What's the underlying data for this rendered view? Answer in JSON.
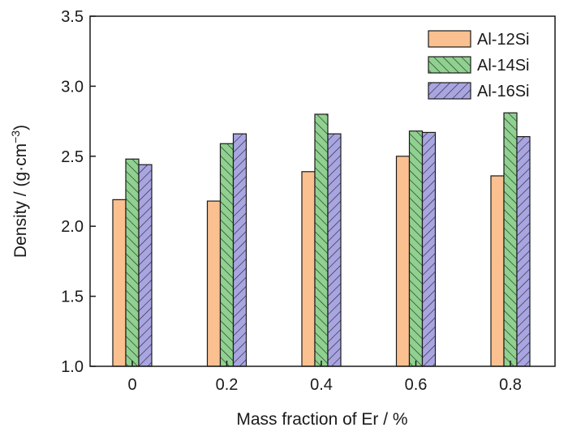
{
  "chart_data": {
    "type": "bar",
    "categories": [
      "0",
      "0.2",
      "0.4",
      "0.6",
      "0.8"
    ],
    "series": [
      {
        "name": "Al-12Si",
        "values": [
          2.19,
          2.18,
          2.39,
          2.5,
          2.36
        ],
        "color": "#fac090",
        "pattern": "none"
      },
      {
        "name": "Al-14Si",
        "values": [
          2.48,
          2.59,
          2.8,
          2.68,
          2.81
        ],
        "color": "#8fd18f",
        "pattern": "diagonal-up"
      },
      {
        "name": "Al-16Si",
        "values": [
          2.44,
          2.66,
          2.66,
          2.67,
          2.64
        ],
        "color": "#a9a5e2",
        "pattern": "diagonal-down"
      }
    ],
    "xlabel": "Mass fraction of Er / %",
    "ylabel": {
      "main": "Density / (g·cm",
      "sup": "−3",
      "close": ")"
    },
    "ylim": [
      1.0,
      3.5
    ],
    "yticks": [
      "1.0",
      "1.5",
      "2.0",
      "2.5",
      "3.0",
      "3.5"
    ],
    "grid": false,
    "legend": "top-right"
  }
}
